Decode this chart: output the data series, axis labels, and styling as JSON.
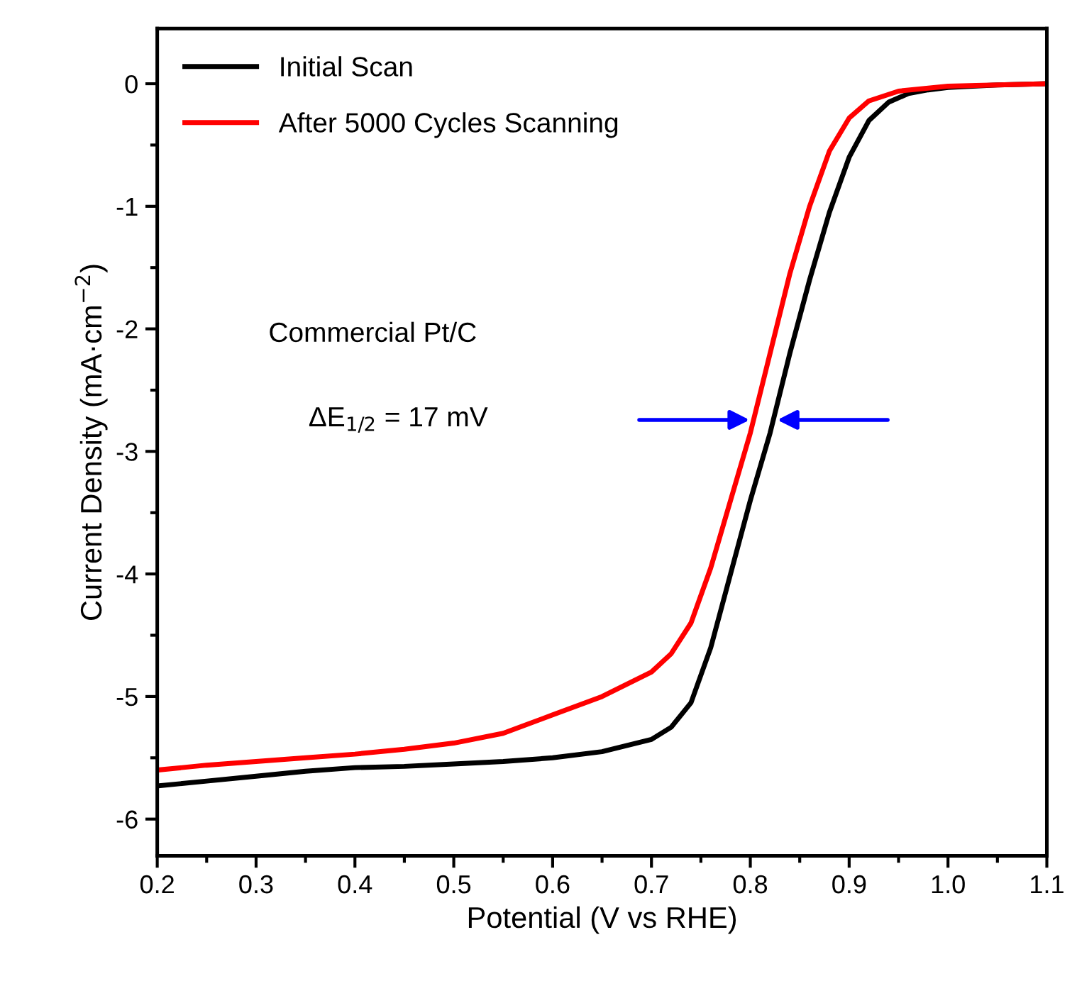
{
  "chart_data": {
    "type": "line",
    "xlabel": "Potential (V vs RHE)",
    "ylabel": "Current Density (mA·cm$^{−2}$)",
    "xlim": [
      0.2,
      1.1
    ],
    "ylim": [
      -6.3,
      0.45
    ],
    "xticks": [
      0.2,
      {
        "value": 0.25,
        "label": null
      },
      0.3,
      {
        "value": 0.35,
        "label": null
      },
      0.4,
      {
        "value": 0.45,
        "label": null
      },
      0.5,
      {
        "value": 0.55,
        "label": null
      },
      0.6,
      {
        "value": 0.65,
        "label": null
      },
      0.7,
      {
        "value": 0.75,
        "label": null
      },
      0.8,
      {
        "value": 0.85,
        "label": null
      },
      0.9,
      {
        "value": 0.95,
        "label": null
      },
      {
        "value": 1.0,
        "label": "1.0"
      },
      {
        "value": 1.05,
        "label": null
      },
      1.1
    ],
    "yticks": [
      -6,
      {
        "value": -5.5,
        "label": null
      },
      -5,
      {
        "value": -4.5,
        "label": null
      },
      -4,
      {
        "value": -3.5,
        "label": null
      },
      -3,
      {
        "value": -2.5,
        "label": null
      },
      -2,
      {
        "value": -1.5,
        "label": null
      },
      -1,
      {
        "value": -0.5,
        "label": null
      },
      0
    ],
    "grid": false,
    "legend": "top left",
    "marker": "none",
    "line_style": "solid",
    "series": [
      {
        "name": "Initial Scan",
        "color": "#000000",
        "x": [
          0.2,
          0.25,
          0.3,
          0.35,
          0.4,
          0.45,
          0.5,
          0.55,
          0.6,
          0.65,
          0.7,
          0.72,
          0.74,
          0.76,
          0.78,
          0.8,
          0.82,
          0.84,
          0.86,
          0.88,
          0.9,
          0.92,
          0.94,
          0.96,
          0.98,
          1.0,
          1.05,
          1.1
        ],
        "values": [
          -5.73,
          -5.69,
          -5.65,
          -5.61,
          -5.58,
          -5.57,
          -5.55,
          -5.53,
          -5.5,
          -5.45,
          -5.35,
          -5.25,
          -5.05,
          -4.6,
          -4.0,
          -3.4,
          -2.85,
          -2.2,
          -1.6,
          -1.05,
          -0.6,
          -0.3,
          -0.15,
          -0.08,
          -0.05,
          -0.03,
          -0.01,
          0
        ]
      },
      {
        "name": "After 5000 Cycles Scanning",
        "color": "#ff0000",
        "x": [
          0.2,
          0.25,
          0.3,
          0.35,
          0.4,
          0.45,
          0.5,
          0.55,
          0.6,
          0.65,
          0.7,
          0.72,
          0.74,
          0.76,
          0.78,
          0.8,
          0.82,
          0.84,
          0.86,
          0.88,
          0.9,
          0.92,
          0.95,
          1.0,
          1.05,
          1.1
        ],
        "values": [
          -5.6,
          -5.56,
          -5.53,
          -5.5,
          -5.47,
          -5.43,
          -5.38,
          -5.3,
          -5.15,
          -5.0,
          -4.8,
          -4.65,
          -4.4,
          -3.95,
          -3.4,
          -2.85,
          -2.2,
          -1.55,
          -1.0,
          -0.55,
          -0.28,
          -0.14,
          -0.06,
          -0.02,
          -0.01,
          0
        ]
      }
    ],
    "annotations": [
      "Commercial Pt/C",
      "ΔE$_{1/2}$ = 17 mV"
    ]
  }
}
